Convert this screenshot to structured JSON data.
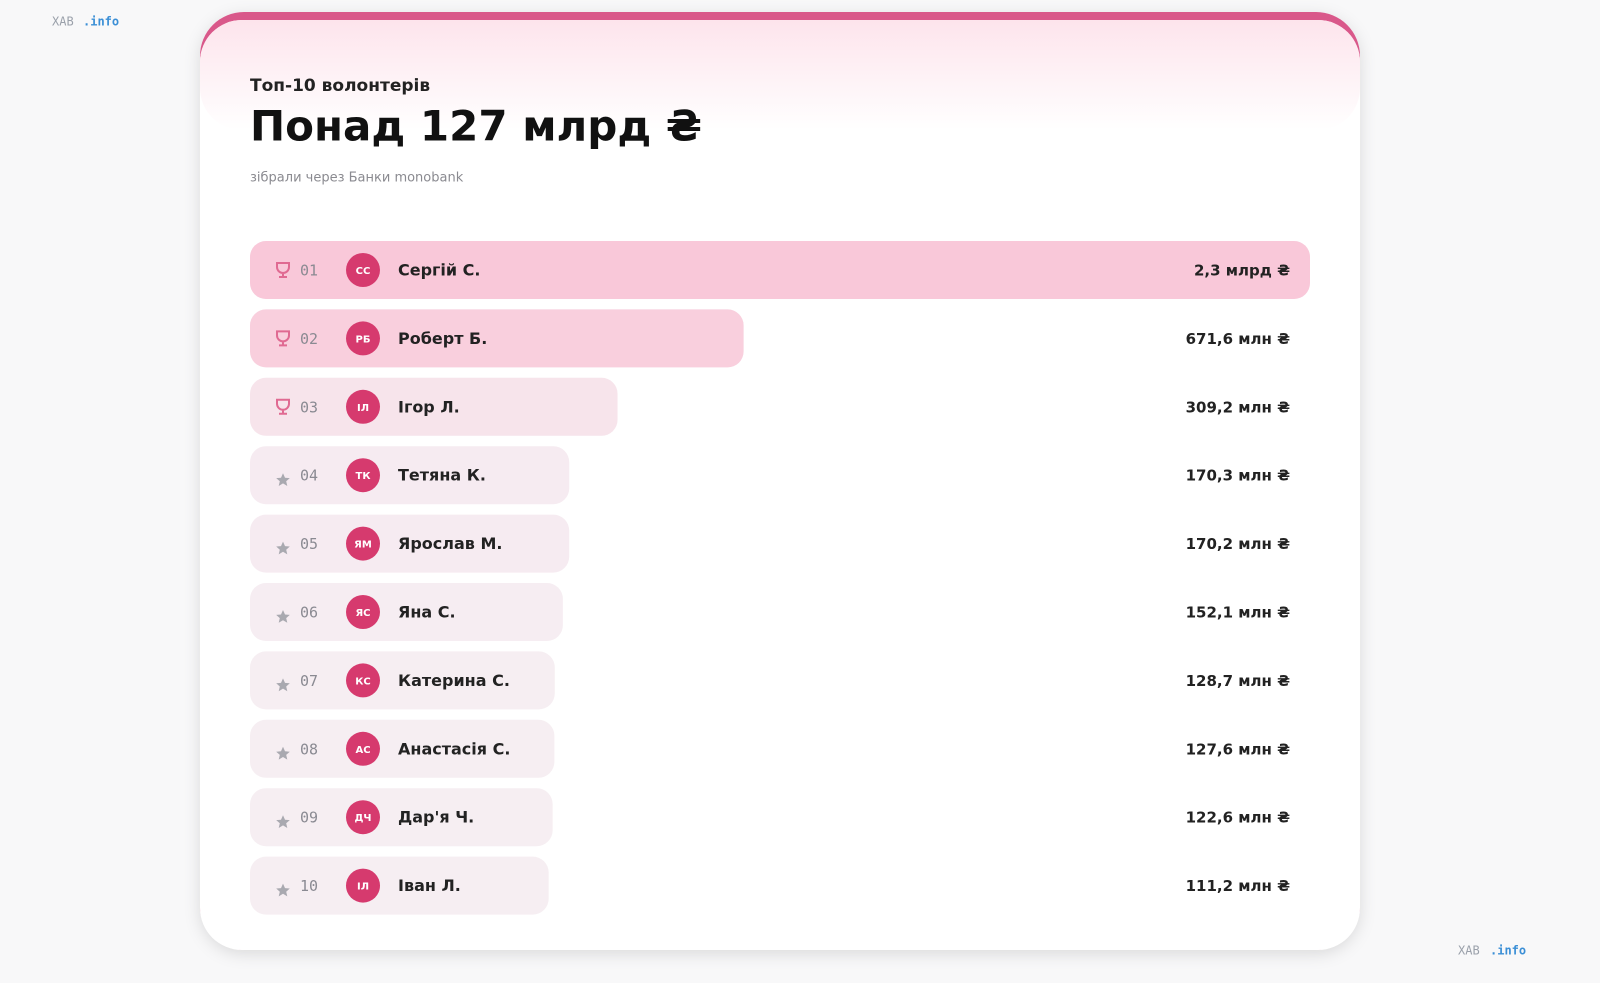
{
  "watermark": {
    "brand": "ХАВ",
    "suffix": ".info"
  },
  "chart_data": {
    "type": "bar",
    "orientation": "horizontal",
    "kicker": "Топ-10 волонтерів",
    "title": "Понад 127 млрд ₴",
    "subtitle": "зібрали через Банки monobank",
    "ranks": [
      "01",
      "02",
      "03",
      "04",
      "05",
      "06",
      "07",
      "08",
      "09",
      "10"
    ],
    "initials": [
      "СС",
      "РБ",
      "ІЛ",
      "ТК",
      "ЯМ",
      "ЯС",
      "КС",
      "АС",
      "ДЧ",
      "ІЛ"
    ],
    "categories": [
      "Сергій С.",
      "Роберт Б.",
      "Ігор Л.",
      "Тетяна К.",
      "Ярослав М.",
      "Яна С.",
      "Катерина С.",
      "Анастасія С.",
      "Дар'я Ч.",
      "Іван Л."
    ],
    "values": [
      2300,
      671.6,
      309.2,
      170.3,
      170.2,
      152.1,
      128.7,
      127.6,
      122.6,
      111.2
    ],
    "value_labels": [
      "2,3 млрд ₴",
      "671,6 млн ₴",
      "309,2 млн ₴",
      "170,3 млн ₴",
      "170,2 млн ₴",
      "152,1 млн ₴",
      "128,7 млн ₴",
      "127,6 млн ₴",
      "122,6 млн ₴",
      "111,2 млн ₴"
    ],
    "color": "#f9c0d3",
    "avatar_color": "#d63a6e"
  }
}
